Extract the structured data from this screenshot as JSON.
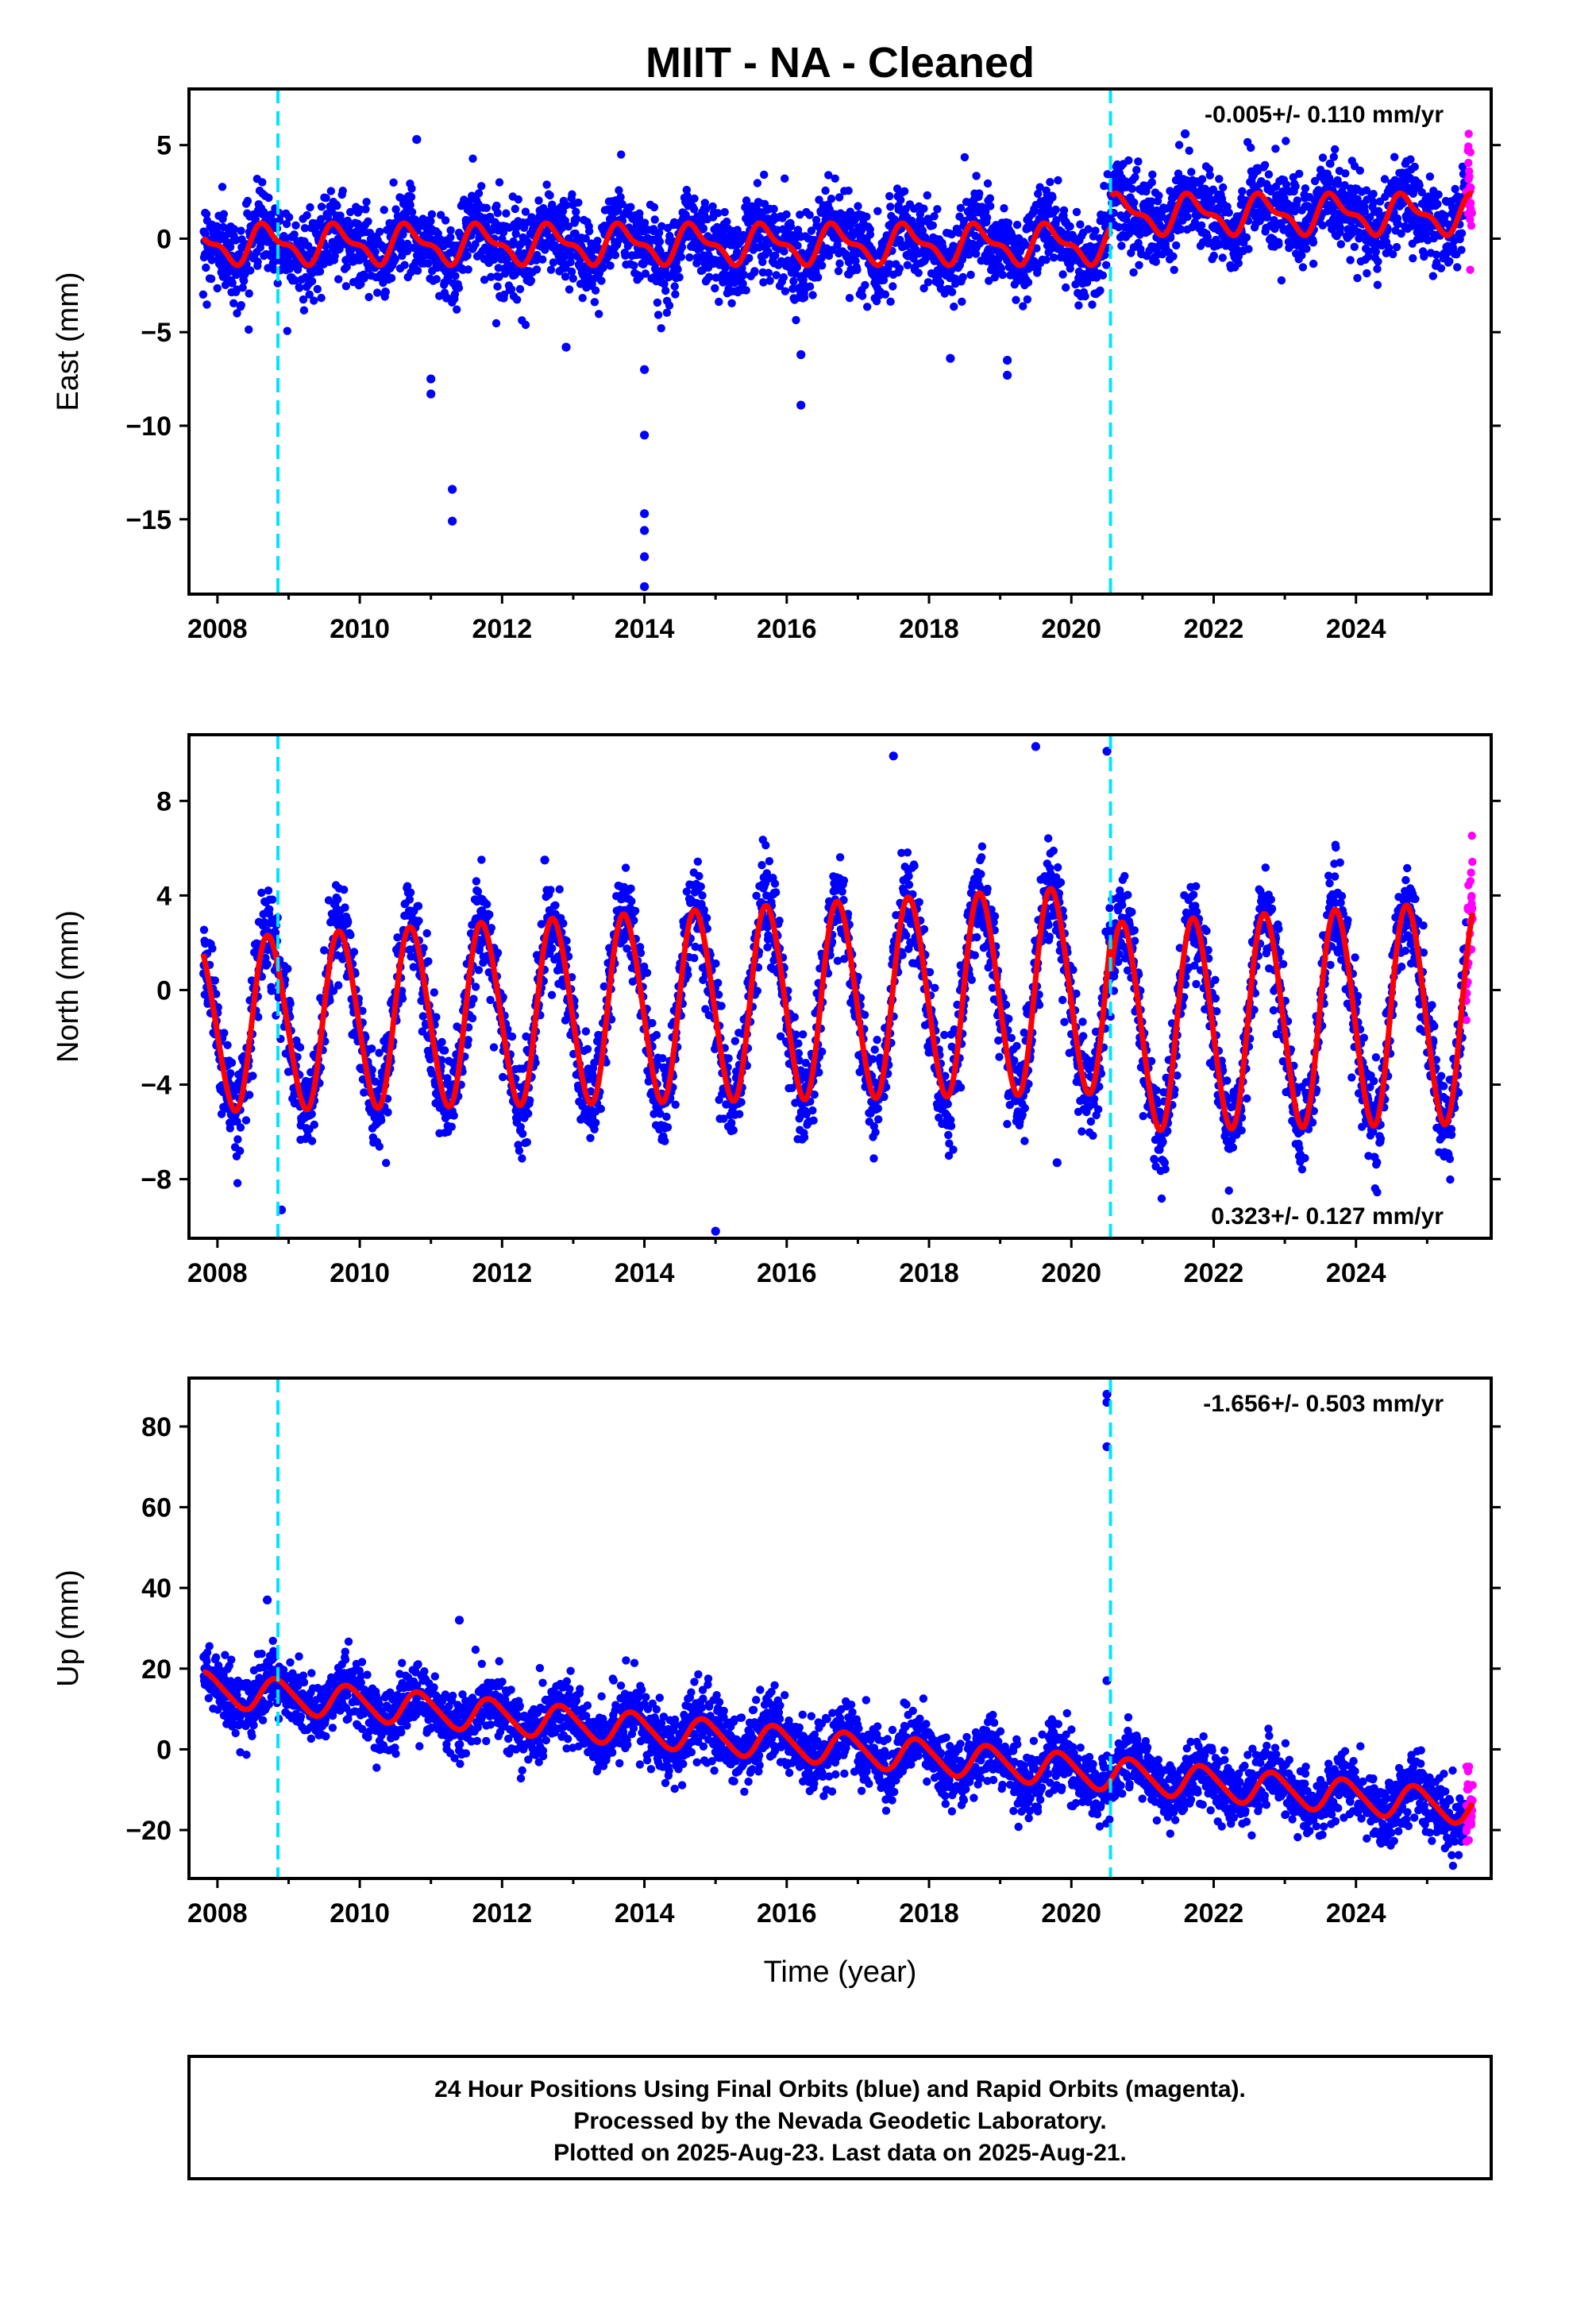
{
  "title": "MIIT  - NA - Cleaned",
  "colors": {
    "final": "#0000ff",
    "rapid": "#ff00ff",
    "model": "#ff0000",
    "offset": "#00e5ff"
  },
  "footer": {
    "line1": "24 Hour Positions Using Final Orbits (blue) and Rapid Orbits (magenta).",
    "line2": "Processed by the Nevada Geodetic Laboratory.",
    "line3": "Plotted on 2025-Aug-23. Last data on 2025-Aug-21."
  },
  "chart_data": [
    {
      "type": "scatter",
      "component": "east",
      "ylabel": "East (mm)",
      "xlabel": "",
      "xlim": [
        2007.6,
        2025.9
      ],
      "ylim": [
        -19,
        8
      ],
      "xticks": [
        2008,
        2010,
        2012,
        2014,
        2016,
        2018,
        2020,
        2022,
        2024
      ],
      "yticks": [
        5,
        0,
        -5,
        -10,
        -15
      ],
      "ytick_labels": [
        "5",
        "0",
        "−5",
        "−10",
        "−15"
      ],
      "rate_text": "-0.005+/- 0.110 mm/yr",
      "rate_position": "top-right",
      "offset_lines": [
        2008.85,
        2020.55
      ],
      "model": {
        "base": -0.3,
        "rate": 0.0,
        "annual_amp": 0.9,
        "annual_phase": 0.45,
        "semiannual_amp": 0.4,
        "steps": [
          [
            2020.55,
            1.6
          ]
        ]
      },
      "noise_sd": 1.1,
      "final_range": [
        2007.8,
        2025.55
      ],
      "rapid_range": [
        2025.55,
        2025.64
      ],
      "outliers": [
        [
          2011.0,
          -8.3
        ],
        [
          2011.0,
          -7.5
        ],
        [
          2011.3,
          -13.4
        ],
        [
          2011.3,
          -15.1
        ],
        [
          2012.9,
          -5.8
        ],
        [
          2014.0,
          -7.0
        ],
        [
          2014.0,
          -10.5
        ],
        [
          2014.0,
          -14.7
        ],
        [
          2014.0,
          -15.6
        ],
        [
          2014.0,
          -17.0
        ],
        [
          2014.0,
          -18.6
        ],
        [
          2016.2,
          -6.2
        ],
        [
          2016.2,
          -8.9
        ],
        [
          2018.3,
          -6.4
        ],
        [
          2019.1,
          -6.5
        ],
        [
          2019.1,
          -7.3
        ],
        [
          2010.8,
          5.3
        ],
        [
          2021.6,
          5.6
        ]
      ]
    },
    {
      "type": "scatter",
      "component": "north",
      "ylabel": "North (mm)",
      "xlabel": "",
      "xlim": [
        2007.6,
        2025.9
      ],
      "ylim": [
        -10.5,
        10.8
      ],
      "xticks": [
        2008,
        2010,
        2012,
        2014,
        2016,
        2018,
        2020,
        2022,
        2024
      ],
      "yticks": [
        8,
        4,
        0,
        -4,
        -8
      ],
      "ytick_labels": [
        "8",
        "4",
        "0",
        "−4",
        "−8"
      ],
      "rate_text": "0.323+/- 0.127 mm/yr",
      "rate_position": "bottom-right",
      "offset_lines": [
        2008.85,
        2020.55
      ],
      "model": {
        "base": -1.5,
        "rate": 0.12,
        "annual_amp": 3.6,
        "annual_amp_growth": 0.06,
        "annual_phase": 0.48,
        "semiannual_amp": 0.3,
        "steps": [
          [
            2020.55,
            -1.6
          ]
        ]
      },
      "noise_sd": 1.0,
      "final_range": [
        2007.8,
        2025.55
      ],
      "rapid_range": [
        2025.55,
        2025.64
      ],
      "outliers": [
        [
          2008.9,
          -9.3
        ],
        [
          2017.5,
          9.9
        ],
        [
          2019.5,
          10.3
        ],
        [
          2020.5,
          10.1
        ],
        [
          2015.0,
          -10.2
        ],
        [
          2019.8,
          -7.3
        ],
        [
          2012.6,
          5.5
        ]
      ]
    },
    {
      "type": "scatter",
      "component": "up",
      "ylabel": "Up (mm)",
      "xlabel": "Time (year)",
      "xlim": [
        2007.6,
        2025.9
      ],
      "ylim": [
        -32,
        92
      ],
      "xticks": [
        2008,
        2010,
        2012,
        2014,
        2016,
        2018,
        2020,
        2022,
        2024
      ],
      "yticks": [
        80,
        60,
        40,
        20,
        0,
        -20
      ],
      "ytick_labels": [
        "80",
        "60",
        "40",
        "20",
        "0",
        "−20"
      ],
      "rate_text": "-1.656+/- 0.503 mm/yr",
      "rate_position": "top-right",
      "offset_lines": [
        2008.85,
        2020.55
      ],
      "model": {
        "base": 15.0,
        "rate": -1.656,
        "annual_amp": 4.0,
        "annual_phase": 0.6,
        "semiannual_amp": 0.6,
        "steps": []
      },
      "noise_sd": 4.0,
      "final_range": [
        2007.8,
        2025.55
      ],
      "rapid_range": [
        2025.55,
        2025.64
      ],
      "outliers": [
        [
          2020.5,
          88.0
        ],
        [
          2020.5,
          86.0
        ],
        [
          2020.5,
          75.0
        ],
        [
          2020.5,
          17.0
        ],
        [
          2008.7,
          37.0
        ],
        [
          2011.4,
          32.0
        ]
      ]
    }
  ]
}
